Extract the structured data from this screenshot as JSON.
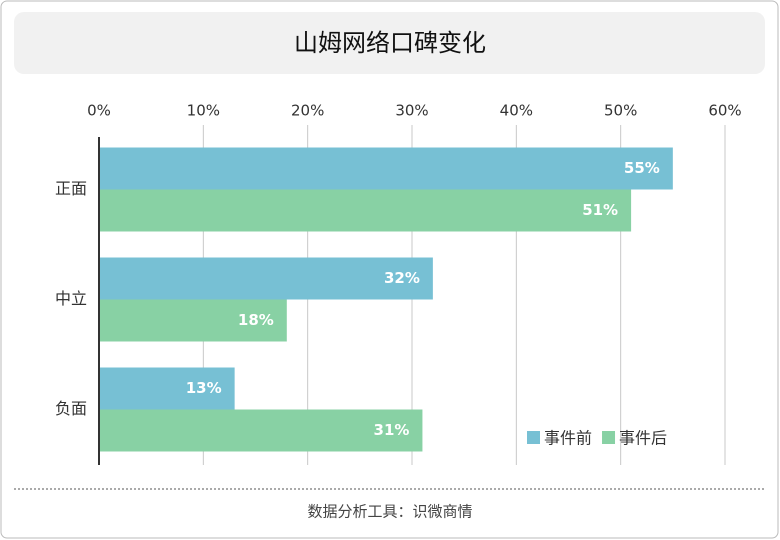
{
  "chart_data": {
    "type": "bar",
    "orientation": "horizontal",
    "title": "山姆网络口碑变化",
    "categories": [
      "正面",
      "中立",
      "负面"
    ],
    "series": [
      {
        "name": "事件前",
        "color": "#77c0d4",
        "values": [
          55,
          32,
          13
        ],
        "value_labels": [
          "55%",
          "32%",
          "13%"
        ]
      },
      {
        "name": "事件后",
        "color": "#88d1a4",
        "values": [
          51,
          18,
          31
        ],
        "value_labels": [
          "51%",
          "18%",
          "31%"
        ]
      }
    ],
    "xlim": [
      0,
      60
    ],
    "xticks": [
      {
        "value": 0,
        "label": "0%"
      },
      {
        "value": 10,
        "label": "10%"
      },
      {
        "value": 20,
        "label": "20%"
      },
      {
        "value": 30,
        "label": "30%"
      },
      {
        "value": 40,
        "label": "40%"
      },
      {
        "value": 50,
        "label": "50%"
      },
      {
        "value": 60,
        "label": "60%"
      }
    ],
    "grid": true,
    "legend": "lower right",
    "source": "数据分析工具：识微商情"
  }
}
